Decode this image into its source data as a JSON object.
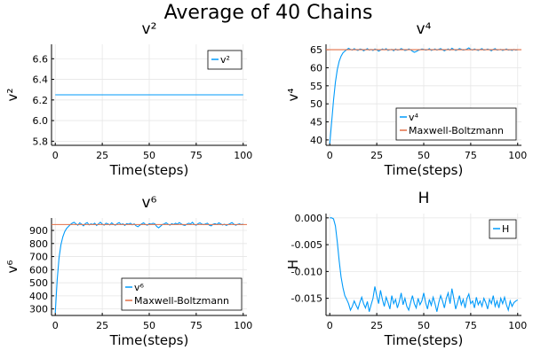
{
  "figure": {
    "suptitle": "Average of 40 Chains"
  },
  "colors": {
    "series": "#009AFA",
    "reference": "#E26F46",
    "grid": "#e6e6e6",
    "axis": "#000000"
  },
  "chart_data": [
    {
      "type": "line",
      "title": "v²",
      "xlabel": "Time(steps)",
      "ylabel": "v²",
      "xlim": [
        -2,
        102
      ],
      "ylim": [
        5.76,
        6.74
      ],
      "xticks": [
        0,
        25,
        50,
        75,
        100
      ],
      "xtick_labels": [
        "0",
        "25",
        "50",
        "75",
        "100"
      ],
      "yticks": [
        5.8,
        6.0,
        6.2,
        6.4,
        6.6
      ],
      "ytick_labels": [
        "5.8",
        "6.0",
        "6.2",
        "6.4",
        "6.6"
      ],
      "grid": true,
      "legend_position": "top-right",
      "series": [
        {
          "name": "v²",
          "x": [
            0,
            100
          ],
          "y": [
            6.25,
            6.25
          ]
        }
      ]
    },
    {
      "type": "line",
      "title": "v⁴",
      "xlabel": "Time(steps)",
      "ylabel": "v⁴",
      "xlim": [
        -2,
        102
      ],
      "ylim": [
        38.5,
        66.5
      ],
      "xticks": [
        0,
        25,
        50,
        75,
        100
      ],
      "xtick_labels": [
        "0",
        "25",
        "50",
        "75",
        "100"
      ],
      "yticks": [
        40,
        45,
        50,
        55,
        60,
        65
      ],
      "ytick_labels": [
        "40",
        "45",
        "50",
        "55",
        "60",
        "65"
      ],
      "grid": true,
      "legend_position": "bottom-right",
      "series": [
        {
          "name": "v⁴",
          "x": [
            0,
            1,
            2,
            3,
            4,
            5,
            6,
            7,
            8,
            9,
            10,
            11,
            12,
            13,
            14,
            15,
            16,
            17,
            18,
            19,
            20,
            21,
            22,
            23,
            24,
            25,
            26,
            27,
            28,
            29,
            30,
            31,
            32,
            33,
            34,
            35,
            36,
            37,
            38,
            39,
            40,
            41,
            42,
            43,
            44,
            45,
            46,
            47,
            48,
            49,
            50,
            51,
            52,
            53,
            54,
            55,
            56,
            57,
            58,
            59,
            60,
            61,
            62,
            63,
            64,
            65,
            66,
            67,
            68,
            69,
            70,
            71,
            72,
            73,
            74,
            75,
            76,
            77,
            78,
            79,
            80,
            81,
            82,
            83,
            84,
            85,
            86,
            87,
            88,
            89,
            90,
            91,
            92,
            93,
            94,
            95,
            96,
            97,
            98,
            99,
            100
          ],
          "y": [
            39,
            45,
            51,
            56,
            59.5,
            61.8,
            63.2,
            64.1,
            64.6,
            65.0,
            65.4,
            65.1,
            64.9,
            65.3,
            65.0,
            64.8,
            65.2,
            65.1,
            64.7,
            65.0,
            65.3,
            64.9,
            65.1,
            64.8,
            65.2,
            65.0,
            64.6,
            64.9,
            65.2,
            65.0,
            65.3,
            64.8,
            65.0,
            65.1,
            64.7,
            65.2,
            64.9,
            65.0,
            65.3,
            65.1,
            64.8,
            64.9,
            65.2,
            65.0,
            64.6,
            64.3,
            64.5,
            64.8,
            65.0,
            65.2,
            65.1,
            64.9,
            65.0,
            65.3,
            64.8,
            65.0,
            65.2,
            64.9,
            65.1,
            65.3,
            65.0,
            64.7,
            65.0,
            65.2,
            64.9,
            65.4,
            65.1,
            64.8,
            65.0,
            65.3,
            65.1,
            64.9,
            65.0,
            65.2,
            65.5,
            65.1,
            64.9,
            65.2,
            65.0,
            64.8,
            65.1,
            65.3,
            64.9,
            65.0,
            65.2,
            65.0,
            64.7,
            65.1,
            65.3,
            64.9,
            65.0,
            65.1,
            64.8,
            65.0,
            65.2,
            64.9,
            65.0,
            64.8,
            65.1,
            64.9,
            65.0
          ]
        },
        {
          "name": "Maxwell-Boltzmann",
          "x": [
            -2,
            102
          ],
          "y": [
            65,
            65
          ],
          "color_role": "reference"
        }
      ]
    },
    {
      "type": "line",
      "title": "v⁶",
      "xlabel": "Time(steps)",
      "ylabel": "v⁶",
      "xlim": [
        -2,
        102
      ],
      "ylim": [
        250,
        995
      ],
      "xticks": [
        0,
        25,
        50,
        75,
        100
      ],
      "xtick_labels": [
        "0",
        "25",
        "50",
        "75",
        "100"
      ],
      "yticks": [
        300,
        400,
        500,
        600,
        700,
        800,
        900
      ],
      "ytick_labels": [
        "300",
        "400",
        "500",
        "600",
        "700",
        "800",
        "900"
      ],
      "grid": true,
      "legend_position": "bottom-right",
      "series": [
        {
          "name": "v⁶",
          "x": [
            0,
            1,
            2,
            3,
            4,
            5,
            6,
            7,
            8,
            9,
            10,
            11,
            12,
            13,
            14,
            15,
            16,
            17,
            18,
            19,
            20,
            21,
            22,
            23,
            24,
            25,
            26,
            27,
            28,
            29,
            30,
            31,
            32,
            33,
            34,
            35,
            36,
            37,
            38,
            39,
            40,
            41,
            42,
            43,
            44,
            45,
            46,
            47,
            48,
            49,
            50,
            51,
            52,
            53,
            54,
            55,
            56,
            57,
            58,
            59,
            60,
            61,
            62,
            63,
            64,
            65,
            66,
            67,
            68,
            69,
            70,
            71,
            72,
            73,
            74,
            75,
            76,
            77,
            78,
            79,
            80,
            81,
            82,
            83,
            84,
            85,
            86,
            87,
            88,
            89,
            90,
            91,
            92,
            93,
            94,
            95,
            96,
            97,
            98,
            99,
            100
          ],
          "y": [
            270,
            520,
            690,
            790,
            850,
            890,
            915,
            930,
            945,
            955,
            962,
            950,
            940,
            958,
            948,
            935,
            952,
            960,
            942,
            950,
            945,
            955,
            938,
            950,
            962,
            948,
            940,
            955,
            950,
            942,
            958,
            946,
            940,
            952,
            960,
            945,
            950,
            938,
            952,
            948,
            955,
            943,
            950,
            935,
            928,
            940,
            950,
            958,
            945,
            940,
            952,
            948,
            955,
            950,
            930,
            920,
            932,
            945,
            950,
            958,
            948,
            940,
            952,
            945,
            955,
            948,
            960,
            950,
            942,
            938,
            948,
            955,
            950,
            962,
            945,
            940,
            952,
            958,
            948,
            944,
            950,
            955,
            940,
            935,
            948,
            952,
            945,
            958,
            950,
            942,
            948,
            938,
            945,
            952,
            960,
            948,
            940,
            946,
            950,
            944,
            948
          ]
        },
        {
          "name": "Maxwell-Boltzmann",
          "x": [
            -2,
            102
          ],
          "y": [
            945,
            945
          ],
          "color_role": "reference"
        }
      ]
    },
    {
      "type": "line",
      "title": "H",
      "xlabel": "Time(steps)",
      "ylabel": "H",
      "xlim": [
        -2,
        102
      ],
      "ylim": [
        -0.0182,
        0.0008
      ],
      "xticks": [
        0,
        25,
        50,
        75,
        100
      ],
      "xtick_labels": [
        "0",
        "25",
        "50",
        "75",
        "100"
      ],
      "yticks": [
        0,
        -0.005,
        -0.01,
        -0.015
      ],
      "ytick_labels": [
        "0.000",
        "-0.005",
        "-0.010",
        "-0.015"
      ],
      "grid": true,
      "legend_position": "top-right",
      "series": [
        {
          "name": "H",
          "x": [
            0,
            1,
            2,
            3,
            4,
            5,
            6,
            7,
            8,
            9,
            10,
            11,
            12,
            13,
            14,
            15,
            16,
            17,
            18,
            19,
            20,
            21,
            22,
            23,
            24,
            25,
            26,
            27,
            28,
            29,
            30,
            31,
            32,
            33,
            34,
            35,
            36,
            37,
            38,
            39,
            40,
            41,
            42,
            43,
            44,
            45,
            46,
            47,
            48,
            49,
            50,
            51,
            52,
            53,
            54,
            55,
            56,
            57,
            58,
            59,
            60,
            61,
            62,
            63,
            64,
            65,
            66,
            67,
            68,
            69,
            70,
            71,
            72,
            73,
            74,
            75,
            76,
            77,
            78,
            79,
            80,
            81,
            82,
            83,
            84,
            85,
            86,
            87,
            88,
            89,
            90,
            91,
            92,
            93,
            94,
            95,
            96,
            97,
            98,
            99,
            100
          ],
          "y": [
            0.0,
            0.0,
            -0.0002,
            -0.0015,
            -0.0045,
            -0.008,
            -0.011,
            -0.013,
            -0.0145,
            -0.0152,
            -0.016,
            -0.0172,
            -0.0165,
            -0.0155,
            -0.0163,
            -0.017,
            -0.0158,
            -0.0148,
            -0.016,
            -0.0168,
            -0.0156,
            -0.0175,
            -0.0162,
            -0.015,
            -0.0128,
            -0.0145,
            -0.016,
            -0.0135,
            -0.0152,
            -0.0165,
            -0.0148,
            -0.0158,
            -0.017,
            -0.0145,
            -0.016,
            -0.0152,
            -0.0168,
            -0.0156,
            -0.014,
            -0.0162,
            -0.015,
            -0.0165,
            -0.0172,
            -0.0158,
            -0.0145,
            -0.016,
            -0.0168,
            -0.015,
            -0.0162,
            -0.0155,
            -0.014,
            -0.0158,
            -0.017,
            -0.0152,
            -0.0163,
            -0.0148,
            -0.016,
            -0.0175,
            -0.0158,
            -0.0145,
            -0.0155,
            -0.0168,
            -0.015,
            -0.014,
            -0.016,
            -0.0132,
            -0.015,
            -0.017,
            -0.0158,
            -0.0145,
            -0.0162,
            -0.0152,
            -0.0168,
            -0.015,
            -0.0142,
            -0.016,
            -0.0155,
            -0.0168,
            -0.0148,
            -0.0162,
            -0.0155,
            -0.0165,
            -0.015,
            -0.0158,
            -0.017,
            -0.0152,
            -0.016,
            -0.0145,
            -0.0165,
            -0.0155,
            -0.0168,
            -0.015,
            -0.016,
            -0.0148,
            -0.0162,
            -0.0172,
            -0.0155,
            -0.0165,
            -0.0158,
            -0.0155,
            -0.0153
          ]
        }
      ]
    }
  ]
}
